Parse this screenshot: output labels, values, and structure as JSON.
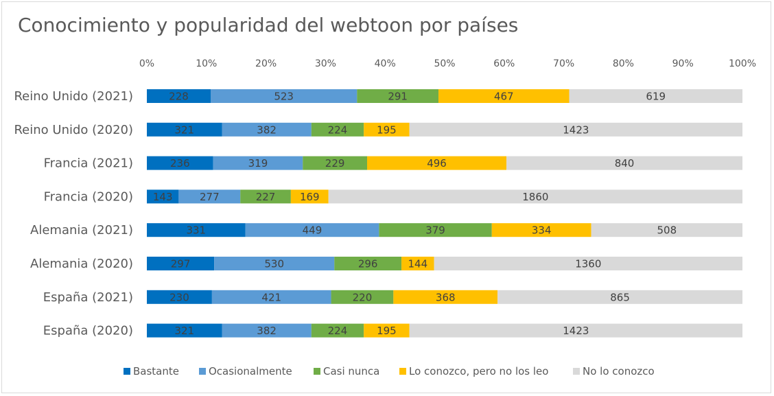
{
  "chart_data": {
    "type": "bar",
    "orientation": "horizontal",
    "stacked": "percent",
    "title": "Conocimiento y popularidad del webtoon por países",
    "categories": [
      "Reino Unido (2021)",
      "Reino Unido (2020)",
      "Francia (2021)",
      "Francia (2020)",
      "Alemania (2021)",
      "Alemania (2020)",
      "España (2021)",
      "España (2020)"
    ],
    "series": [
      {
        "name": "Bastante",
        "color": "#0070c0",
        "values": [
          228,
          321,
          236,
          143,
          331,
          297,
          230,
          321
        ]
      },
      {
        "name": "Ocasionalmente",
        "color": "#5b9bd5",
        "values": [
          523,
          382,
          319,
          277,
          449,
          530,
          421,
          382
        ]
      },
      {
        "name": "Casi nunca",
        "color": "#70ad47",
        "values": [
          291,
          224,
          229,
          227,
          379,
          296,
          220,
          224
        ]
      },
      {
        "name": "Lo conozco, pero no los leo",
        "color": "#ffc000",
        "values": [
          467,
          195,
          496,
          169,
          334,
          144,
          368,
          195
        ]
      },
      {
        "name": "No lo conozco",
        "color": "#d9d9d9",
        "values": [
          619,
          1423,
          840,
          1860,
          508,
          1360,
          865,
          1423
        ]
      }
    ],
    "x_ticks": [
      "0%",
      "10%",
      "20%",
      "30%",
      "40%",
      "50%",
      "60%",
      "70%",
      "80%",
      "90%",
      "100%"
    ],
    "xlim": [
      0,
      100
    ],
    "grid": false,
    "legend_position": "bottom"
  }
}
